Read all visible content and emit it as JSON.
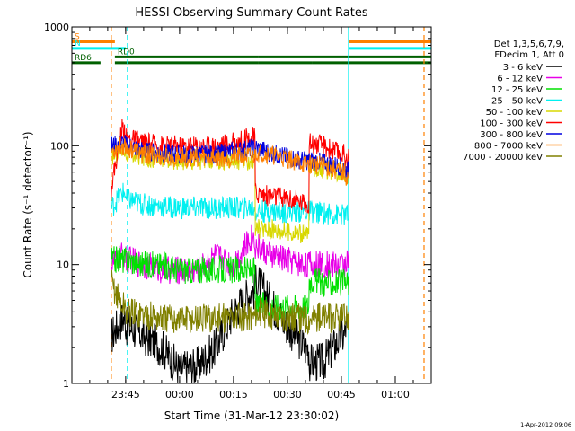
{
  "chart_data": {
    "type": "line",
    "title": "HESSI Observing Summary Count Rates",
    "xlabel": "Start Time (31-Mar-12 23:30:02)",
    "ylabel": "Count Rate (s⁻¹ detector⁻¹)",
    "yscale": "log",
    "ylim": [
      1,
      1000
    ],
    "xlim": [
      "2012-03-31T23:30:02",
      "2012-04-01T01:10:00"
    ],
    "x_tick_labels": [
      "23:45",
      "00:00",
      "00:15",
      "00:30",
      "00:45",
      "01:00"
    ],
    "y_tick_labels": [
      "1",
      "10",
      "100",
      "1000"
    ],
    "legend_placement": "right",
    "legend_header": [
      "Det 1,3,5,6,7,9,",
      "FDecim 1, Att 0"
    ],
    "grid": false,
    "series": [
      {
        "name": "3 - 6 keV",
        "color": "#000000",
        "x": [
          "23:41",
          "23:44",
          "23:46",
          "23:50",
          "23:55",
          "00:00",
          "00:05",
          "00:10",
          "00:15",
          "00:20",
          "00:22",
          "00:25",
          "00:30",
          "00:35",
          "00:37",
          "00:40",
          "00:45",
          "00:47"
        ],
        "values": [
          2.5,
          3.5,
          3.0,
          2.5,
          2.0,
          1.3,
          1.4,
          2.0,
          4.0,
          6.0,
          7.0,
          5.0,
          3.0,
          2.0,
          1.5,
          1.5,
          2.5,
          3.0
        ]
      },
      {
        "name": "6 - 12 keV",
        "color": "#e800e8",
        "x": [
          "23:41",
          "23:44",
          "23:46",
          "23:50",
          "23:55",
          "00:00",
          "00:05",
          "00:10",
          "00:15",
          "00:20",
          "00:22",
          "00:25",
          "00:30",
          "00:35",
          "00:37",
          "00:40",
          "00:45",
          "00:47"
        ],
        "values": [
          10,
          12,
          11,
          10,
          9,
          9,
          9,
          12,
          10,
          17,
          14,
          12,
          11,
          10,
          10,
          10,
          10,
          11
        ]
      },
      {
        "name": "12 - 25 keV",
        "color": "#00e000",
        "x": [
          "23:41",
          "23:44",
          "23:46",
          "23:50",
          "23:55",
          "00:00",
          "00:05",
          "00:10",
          "00:15",
          "00:20",
          "00:22",
          "00:25",
          "00:30",
          "00:35",
          "00:37",
          "00:40",
          "00:45",
          "00:47"
        ],
        "values": [
          11,
          11,
          11,
          10,
          10,
          9,
          9,
          9,
          9,
          9,
          4.5,
          4.5,
          4.5,
          4.5,
          7.5,
          7,
          7,
          7
        ]
      },
      {
        "name": "25 - 50 keV",
        "color": "#00f0f0",
        "x": [
          "23:41",
          "23:44",
          "23:46",
          "23:50",
          "23:55",
          "00:00",
          "00:05",
          "00:10",
          "00:15",
          "00:20",
          "00:22",
          "00:25",
          "00:30",
          "00:35",
          "00:37",
          "00:40",
          "00:45",
          "00:47"
        ],
        "values": [
          30,
          40,
          35,
          32,
          31,
          30,
          30,
          30,
          30,
          30,
          28,
          28,
          28,
          28,
          28,
          27,
          26,
          26
        ]
      },
      {
        "name": "50 - 100 keV",
        "color": "#d8d800",
        "x": [
          "23:41",
          "23:44",
          "23:46",
          "23:50",
          "23:55",
          "00:00",
          "00:05",
          "00:10",
          "00:15",
          "00:20",
          "00:22",
          "00:25",
          "00:30",
          "00:35",
          "00:37",
          "00:40",
          "00:45",
          "00:47"
        ],
        "values": [
          80,
          95,
          85,
          80,
          77,
          76,
          75,
          75,
          75,
          75,
          20,
          20,
          19,
          18,
          67,
          64,
          60,
          55
        ]
      },
      {
        "name": "100 - 300 keV",
        "color": "#ff0000",
        "x": [
          "23:41",
          "23:44",
          "23:46",
          "23:50",
          "23:55",
          "00:00",
          "00:05",
          "00:10",
          "00:15",
          "00:20",
          "00:22",
          "00:25",
          "00:30",
          "00:35",
          "00:37",
          "00:40",
          "00:45",
          "00:47"
        ],
        "values": [
          45,
          140,
          115,
          105,
          100,
          100,
          100,
          100,
          105,
          118,
          40,
          38,
          36,
          33,
          105,
          100,
          85,
          80
        ]
      },
      {
        "name": "300 - 800 keV",
        "color": "#0000e0",
        "x": [
          "23:41",
          "23:44",
          "23:46",
          "23:50",
          "23:55",
          "00:00",
          "00:05",
          "00:10",
          "00:15",
          "00:20",
          "00:22",
          "00:25",
          "00:30",
          "00:35",
          "00:37",
          "00:40",
          "00:45",
          "00:47"
        ],
        "values": [
          100,
          105,
          100,
          90,
          87,
          85,
          85,
          85,
          90,
          95,
          95,
          88,
          80,
          75,
          75,
          72,
          67,
          62
        ]
      },
      {
        "name": "800 - 7000 keV",
        "color": "#ff8000",
        "x": [
          "23:41",
          "23:44",
          "23:46",
          "23:50",
          "23:55",
          "00:00",
          "00:05",
          "00:10",
          "00:15",
          "00:20",
          "00:22",
          "00:25",
          "00:30",
          "00:35",
          "00:37",
          "00:40",
          "00:45",
          "00:47"
        ],
        "values": [
          90,
          100,
          95,
          85,
          80,
          80,
          80,
          80,
          80,
          82,
          88,
          85,
          78,
          70,
          70,
          68,
          60,
          55
        ]
      },
      {
        "name": "7000 - 20000 keV",
        "color": "#808000",
        "x": [
          "23:41",
          "23:44",
          "23:46",
          "23:50",
          "23:55",
          "00:00",
          "00:05",
          "00:10",
          "00:15",
          "00:20",
          "00:22",
          "00:25",
          "00:30",
          "00:35",
          "00:37",
          "00:40",
          "00:45",
          "00:47"
        ],
        "values": [
          7,
          4.5,
          4.0,
          3.8,
          3.5,
          3.5,
          3.5,
          3.5,
          3.6,
          3.7,
          4.0,
          3.8,
          3.6,
          3.5,
          3.6,
          3.6,
          3.5,
          3.6
        ]
      }
    ],
    "flags": [
      {
        "label": "S",
        "color": "#ff8000",
        "value": 750,
        "segments": [
          [
            "23:30:02",
            "23:42"
          ],
          [
            "00:47",
            "01:10"
          ]
        ]
      },
      {
        "label": "N",
        "color": "#00f0f0",
        "value": 660,
        "segments": [
          [
            "23:30:02",
            "23:45"
          ],
          [
            "00:47",
            "01:10"
          ]
        ]
      },
      {
        "label": "RD0",
        "color": "#006000",
        "value": 560,
        "segments": [
          [
            "23:42",
            "00:22"
          ],
          [
            "00:22",
            "01:10"
          ]
        ]
      },
      {
        "label": "RD6",
        "color": "#006000",
        "value": 500,
        "segments": [
          [
            "23:30:02",
            "23:38"
          ],
          [
            "23:42",
            "00:22"
          ],
          [
            "00:22",
            "00:37"
          ],
          [
            "00:37",
            "01:10"
          ]
        ]
      }
    ],
    "markers": [
      {
        "time": "23:41",
        "color": "#ff8000",
        "style": "dashed"
      },
      {
        "time": "23:45:30",
        "color": "#00f0f0",
        "style": "dashed"
      },
      {
        "time": "00:47",
        "color": "#00f0f0",
        "style": "solid"
      },
      {
        "time": "01:08",
        "color": "#ff8000",
        "style": "dashed"
      }
    ],
    "timestamp": "1-Apr-2012 09:06"
  }
}
